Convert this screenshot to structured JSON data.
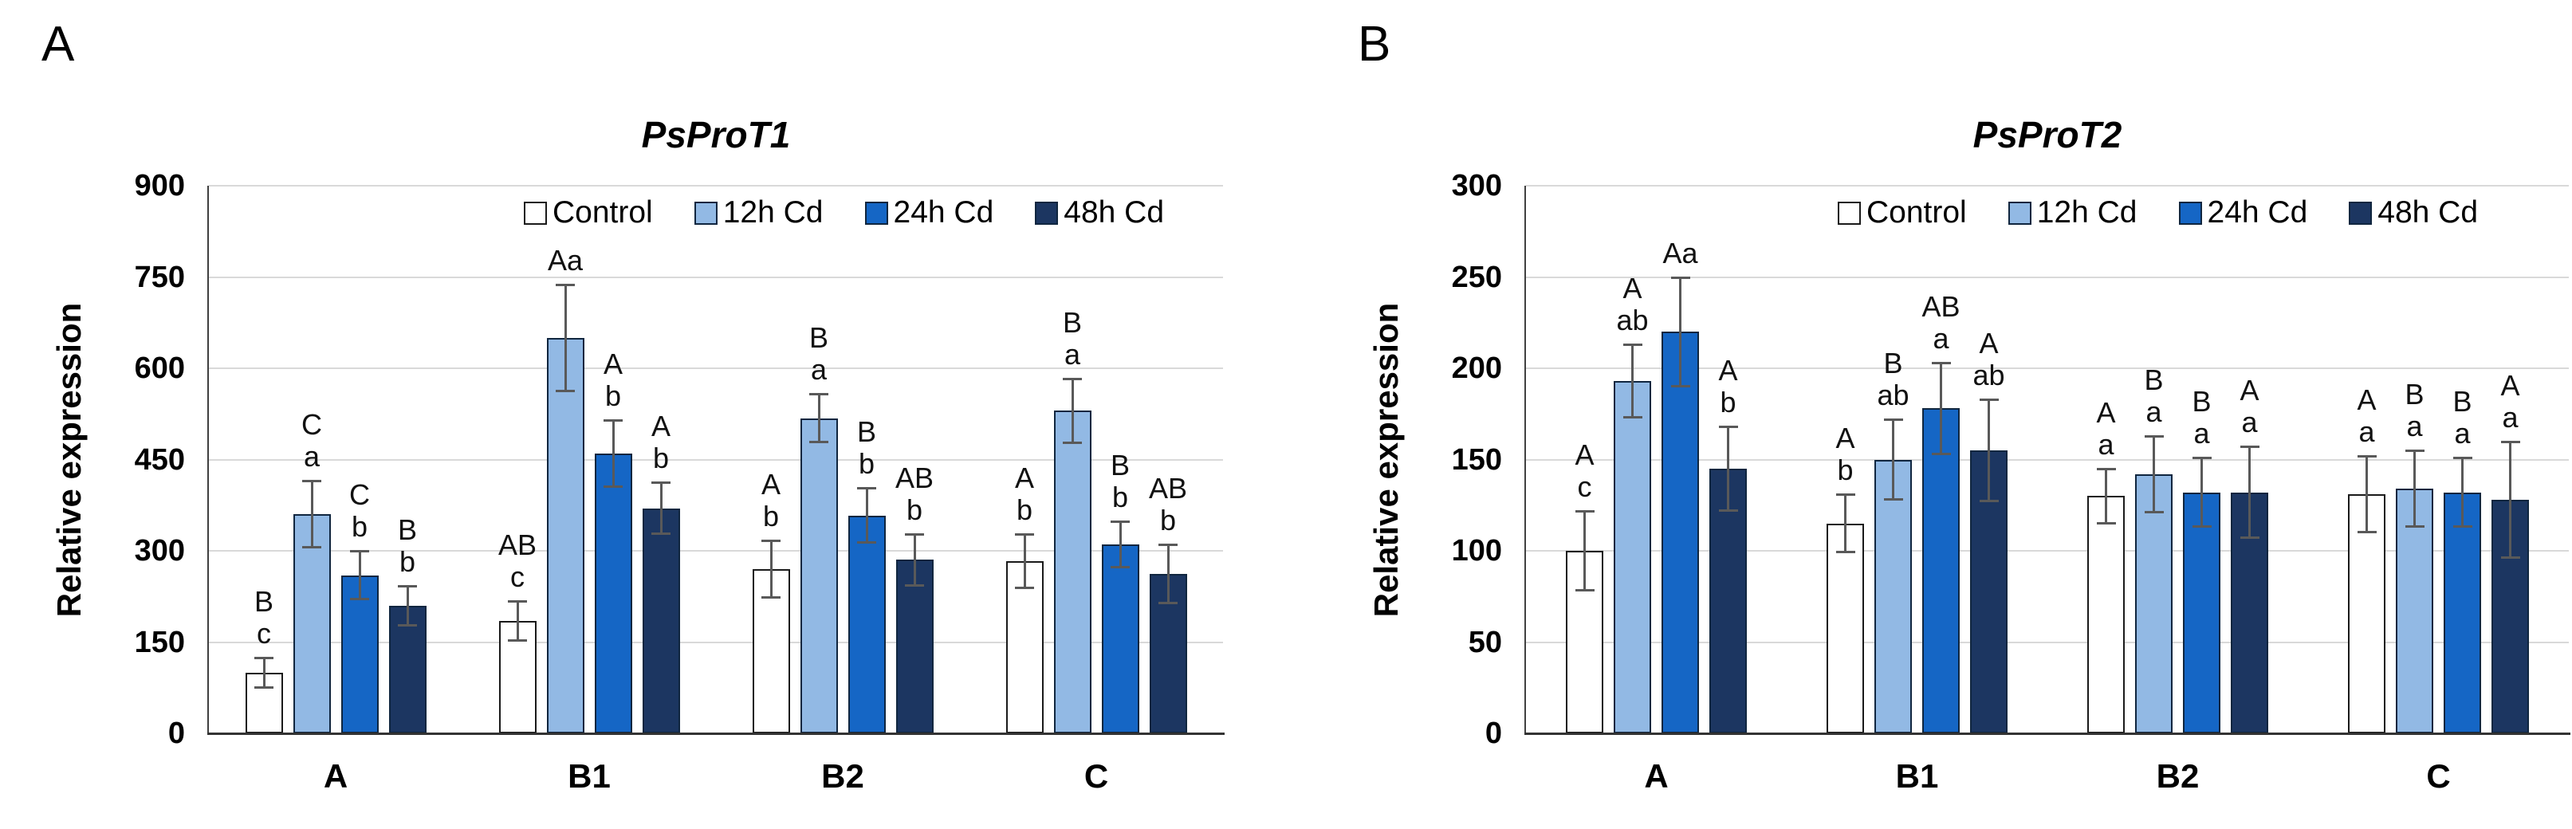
{
  "chart_data": [
    {
      "type": "bar",
      "panel_label": "A",
      "title": "PsProT1",
      "ylabel": "Relative expression",
      "ylim": [
        0,
        900
      ],
      "yticks": [
        0,
        150,
        300,
        450,
        600,
        750,
        900
      ],
      "grid": true,
      "legend_position": "top-inside",
      "categories": [
        "A",
        "B1",
        "B2",
        "C"
      ],
      "series": [
        {
          "name": "Control",
          "color": "#ffffff",
          "border": "#1a1a1a",
          "values": [
            100,
            185,
            270,
            283
          ],
          "errors": [
            25,
            33,
            47,
            45
          ],
          "sig_letters": [
            "B c",
            "AB c",
            "A b",
            "A b"
          ]
        },
        {
          "name": "12h Cd",
          "color": "#92b9e4",
          "border": "#10263f",
          "values": [
            360,
            650,
            518,
            530
          ],
          "errors": [
            55,
            88,
            40,
            53
          ],
          "sig_letters": [
            "C a",
            "Aa",
            "B a",
            "B a"
          ]
        },
        {
          "name": "24h Cd",
          "color": "#1566c5",
          "border": "#10263f",
          "values": [
            260,
            460,
            358,
            310
          ],
          "errors": [
            40,
            55,
            45,
            38
          ],
          "sig_letters": [
            "C b",
            "A b",
            "B b",
            "B b"
          ]
        },
        {
          "name": "48h Cd",
          "color": "#1c3661",
          "border": "#10263f",
          "values": [
            210,
            370,
            285,
            262
          ],
          "errors": [
            33,
            43,
            43,
            48
          ],
          "sig_letters": [
            "B b",
            "A b",
            "AB b",
            "AB b"
          ]
        }
      ]
    },
    {
      "type": "bar",
      "panel_label": "B",
      "title": "PsProT2",
      "ylabel": "Relative expression",
      "ylim": [
        0,
        300
      ],
      "yticks": [
        0,
        50,
        100,
        150,
        200,
        250,
        300
      ],
      "grid": true,
      "legend_position": "top-inside",
      "categories": [
        "A",
        "B1",
        "B2",
        "C"
      ],
      "series": [
        {
          "name": "Control",
          "color": "#ffffff",
          "border": "#1a1a1a",
          "values": [
            100,
            115,
            130,
            131
          ],
          "errors": [
            22,
            16,
            15,
            21
          ],
          "sig_letters": [
            "A c",
            "A b",
            "A a",
            "A a"
          ]
        },
        {
          "name": "12h Cd",
          "color": "#92b9e4",
          "border": "#10263f",
          "values": [
            193,
            150,
            142,
            134
          ],
          "errors": [
            20,
            22,
            21,
            21
          ],
          "sig_letters": [
            "A ab",
            "B ab",
            "B a",
            "B a"
          ]
        },
        {
          "name": "24h Cd",
          "color": "#1566c5",
          "border": "#10263f",
          "values": [
            220,
            178,
            132,
            132
          ],
          "errors": [
            30,
            25,
            19,
            19
          ],
          "sig_letters": [
            "Aa",
            "AB a",
            "B a",
            "B a"
          ]
        },
        {
          "name": "48h Cd",
          "color": "#1c3661",
          "border": "#10263f",
          "values": [
            145,
            155,
            132,
            128
          ],
          "errors": [
            23,
            28,
            25,
            32
          ],
          "sig_letters": [
            "A b",
            "A ab",
            "A a",
            "A a"
          ]
        }
      ]
    }
  ]
}
